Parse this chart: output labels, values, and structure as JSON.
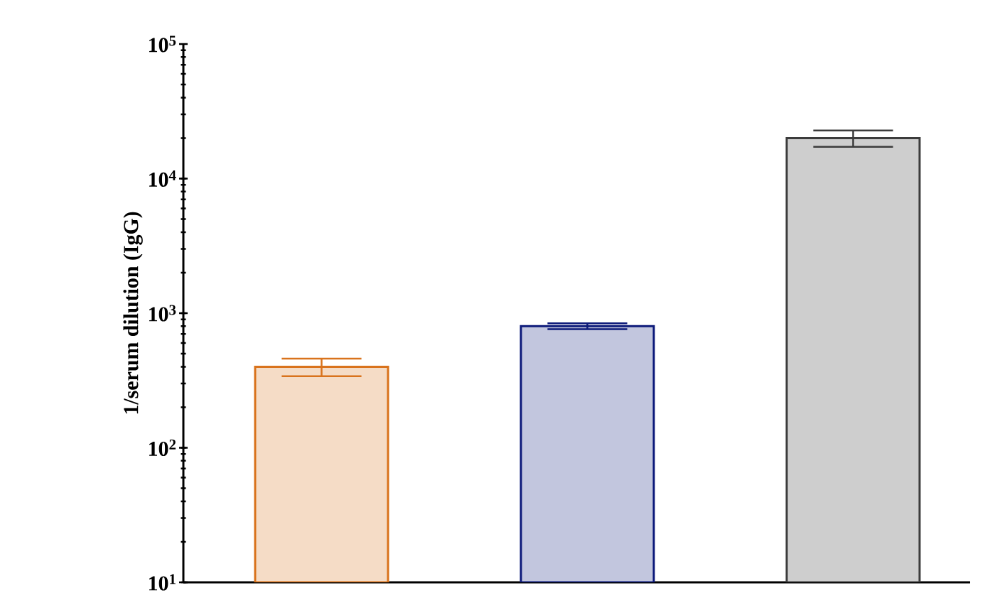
{
  "chart_data": {
    "type": "bar",
    "ylabel": "1/serum dilution (IgG)",
    "categories": [
      null,
      null,
      null
    ],
    "values": [
      400,
      800,
      20000
    ],
    "errors": [
      60,
      40,
      2800
    ],
    "colors": [
      "#d9731c",
      "#0d1a7a",
      "#3c3c3c"
    ],
    "log": true,
    "ylim": [
      10,
      100000
    ],
    "yticks": [
      {
        "value": 10,
        "label": "10$^{1}$"
      },
      {
        "value": 100,
        "label": "10$^{2}$"
      },
      {
        "value": 1000,
        "label": "10$^{3}$"
      },
      {
        "value": 10000,
        "label": "10$^{4}$"
      },
      {
        "value": 100000,
        "label": "10$^{5}$"
      }
    ],
    "grid": false
  }
}
